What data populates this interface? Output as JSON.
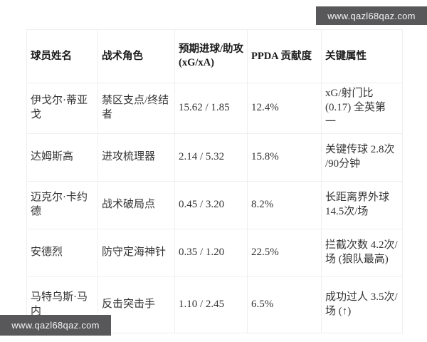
{
  "watermark": {
    "text": "www.qazl68qaz.com",
    "bg_color": "#58585a",
    "text_color": "#f5f5f5"
  },
  "colors": {
    "grid_line": "#efefef",
    "header_text": "#1a1a1a",
    "body_text": "#333333",
    "background": "#ffffff"
  },
  "table": {
    "headers": [
      "球员姓名",
      "战术角色",
      "预期进球/助攻\n(xG/xA)",
      "PPDA 贡献度",
      "关键属性"
    ],
    "rows": [
      {
        "name": "伊戈尔·蒂亚戈",
        "role": "禁区支点/终结者",
        "xg_xa": "15.62 / 1.85",
        "ppda": "12.4%",
        "key_attr": "xG/射门比\n(0.17) 全英第\n一"
      },
      {
        "name": "达姆斯高",
        "role": "进攻梳理器",
        "xg_xa": "2.14 / 5.32",
        "ppda": "15.8%",
        "key_attr": "关键传球 2.8次\n/90分钟"
      },
      {
        "name": "迈克尔·卡约德",
        "role": "战术破局点",
        "xg_xa": "0.45 / 3.20",
        "ppda": "8.2%",
        "key_attr": "长距离界外球\n14.5次/场"
      },
      {
        "name": "安德烈",
        "role": "防守定海神针",
        "xg_xa": "0.35 / 1.20",
        "ppda": "22.5%",
        "key_attr": "拦截次数 4.2次/\n场 (狼队最高)"
      },
      {
        "name": "马特乌斯·马内",
        "role": "反击突击手",
        "xg_xa": "1.10 / 2.45",
        "ppda": "6.5%",
        "key_attr": "成功过人 3.5次/\n场 (↑)"
      }
    ]
  }
}
